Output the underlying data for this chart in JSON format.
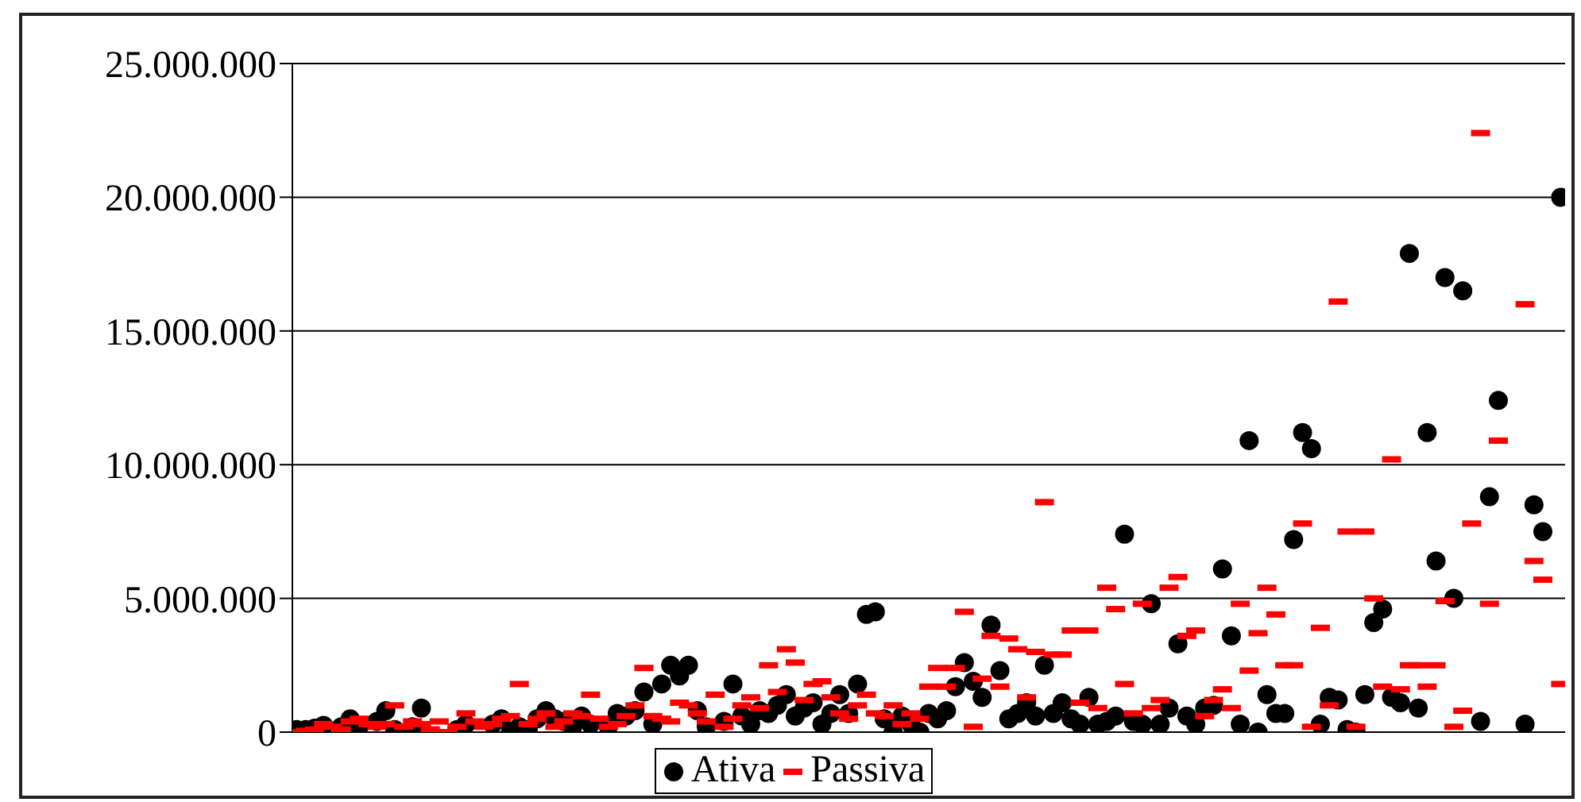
{
  "chart_data": {
    "type": "scatter",
    "categories": [
      null,
      null,
      null,
      null,
      null,
      null,
      null,
      null,
      null,
      null,
      null,
      null,
      null,
      null,
      null,
      null,
      null,
      null,
      null,
      null,
      null,
      null,
      null,
      null,
      null,
      null,
      null,
      null,
      null,
      null,
      null,
      null,
      null,
      null,
      null,
      null,
      null,
      null,
      null,
      null,
      null,
      null,
      null,
      null,
      null,
      null,
      null,
      null,
      null,
      null,
      null,
      null,
      null,
      null,
      null,
      null,
      null,
      null,
      null,
      null,
      null,
      null,
      null,
      null,
      null,
      null,
      null,
      null,
      null,
      null,
      null,
      null,
      null,
      null,
      null,
      null,
      null,
      null,
      null,
      null,
      null,
      null,
      null,
      null,
      null,
      null,
      null,
      null,
      null,
      null,
      null,
      null,
      null,
      null,
      null,
      null,
      null,
      null,
      null,
      null,
      null,
      null,
      null,
      null,
      null,
      null,
      null,
      null,
      null,
      null,
      null,
      null,
      null,
      null,
      null,
      null,
      null,
      null,
      null,
      null,
      null,
      null,
      null,
      null,
      null,
      null,
      null,
      null,
      null,
      null,
      null,
      null,
      null,
      null,
      null,
      null,
      null,
      null,
      null,
      null,
      null,
      null,
      null
    ],
    "series": [
      {
        "name": "Ativa",
        "color": "#000000",
        "marker": "circle",
        "values": [
          100000,
          100000,
          150000,
          250000,
          null,
          200000,
          500000,
          200000,
          null,
          400000,
          800000,
          100000,
          null,
          200000,
          900000,
          null,
          null,
          null,
          100000,
          300000,
          null,
          null,
          300000,
          500000,
          0,
          200000,
          100000,
          500000,
          800000,
          500000,
          400000,
          200000,
          600000,
          300000,
          null,
          200000,
          700000,
          600000,
          800000,
          1500000,
          300000,
          1800000,
          2500000,
          2100000,
          2500000,
          800000,
          200000,
          null,
          400000,
          1800000,
          600000,
          300000,
          800000,
          700000,
          1000000,
          1400000,
          600000,
          900000,
          1100000,
          300000,
          700000,
          1400000,
          700000,
          1800000,
          4400000,
          4500000,
          500000,
          0,
          600000,
          300000,
          0,
          700000,
          500000,
          800000,
          1700000,
          2600000,
          1900000,
          1300000,
          4000000,
          2300000,
          500000,
          700000,
          1100000,
          600000,
          2500000,
          700000,
          1100000,
          500000,
          300000,
          1300000,
          300000,
          400000,
          600000,
          7400000,
          400000,
          300000,
          4800000,
          300000,
          900000,
          3300000,
          600000,
          300000,
          900000,
          1000000,
          6100000,
          3600000,
          300000,
          10900000,
          0,
          1400000,
          700000,
          700000,
          7200000,
          11200000,
          10600000,
          300000,
          1300000,
          1200000,
          100000,
          0,
          1400000,
          4100000,
          4600000,
          1300000,
          1100000,
          17900000,
          900000,
          11200000,
          6400000,
          17000000,
          5000000,
          16500000,
          null,
          400000,
          8800000,
          12400000,
          null,
          null,
          300000,
          8500000,
          7500000,
          null,
          20000000
        ]
      },
      {
        "name": "Passiva",
        "color": "#ff0000",
        "values": [
          0,
          50000,
          100000,
          300000,
          200000,
          100000,
          400000,
          500000,
          300000,
          200000,
          300000,
          1000000,
          200000,
          400000,
          300000,
          100000,
          400000,
          0,
          200000,
          700000,
          400000,
          200000,
          300000,
          500000,
          600000,
          1800000,
          300000,
          500000,
          700000,
          200000,
          400000,
          700000,
          600000,
          1400000,
          500000,
          200000,
          300000,
          600000,
          1000000,
          2400000,
          600000,
          500000,
          400000,
          1100000,
          1000000,
          700000,
          400000,
          1400000,
          200000,
          500000,
          1000000,
          1300000,
          900000,
          2500000,
          1500000,
          3100000,
          2600000,
          1200000,
          1800000,
          1900000,
          1300000,
          700000,
          500000,
          1000000,
          1400000,
          700000,
          600000,
          1000000,
          300000,
          700000,
          500000,
          1700000,
          2400000,
          1700000,
          2400000,
          4500000,
          200000,
          2000000,
          3600000,
          1700000,
          3500000,
          3100000,
          1300000,
          3000000,
          8600000,
          2900000,
          2900000,
          3800000,
          1100000,
          3800000,
          900000,
          5400000,
          4600000,
          1800000,
          700000,
          4800000,
          900000,
          1200000,
          5400000,
          5800000,
          3600000,
          3800000,
          600000,
          1200000,
          1600000,
          900000,
          4800000,
          2300000,
          3700000,
          5400000,
          4400000,
          2500000,
          2500000,
          7800000,
          200000,
          3900000,
          1000000,
          16100000,
          7500000,
          200000,
          7500000,
          5000000,
          1700000,
          10200000,
          1600000,
          2500000,
          2500000,
          1700000,
          2500000,
          4900000,
          200000,
          800000,
          7800000,
          22400000,
          4800000,
          10900000,
          null,
          null,
          16000000,
          6400000,
          5700000,
          null,
          1800000
        ]
      }
    ],
    "ylim": [
      0,
      25000000
    ],
    "yticks": [
      0,
      {
        "value": 5000000,
        "label": "5.000.000"
      },
      {
        "value": 10000000,
        "label": "10.000.000"
      },
      {
        "value": 15000000,
        "label": "15.000.000"
      },
      {
        "value": 20000000,
        "label": "20.000.000"
      },
      {
        "value": 25000000,
        "label": "25.000.000"
      }
    ],
    "grid": "y",
    "legend": "bottom"
  }
}
